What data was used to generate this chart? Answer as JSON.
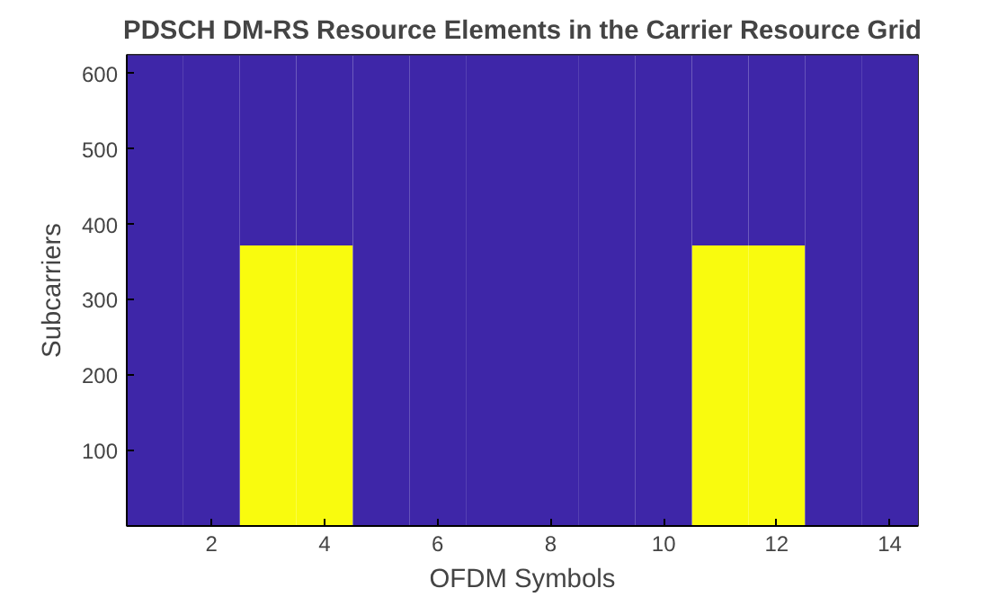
{
  "chart_data": {
    "type": "bar",
    "stacked": true,
    "title": "PDSCH DM-RS Resource Elements in the Carrier Resource Grid",
    "xlabel": "OFDM Symbols",
    "ylabel": "Subcarriers",
    "x": [
      1,
      2,
      3,
      4,
      5,
      6,
      7,
      8,
      9,
      10,
      11,
      12,
      13,
      14
    ],
    "series": [
      {
        "color": "#f9fb0e",
        "values": [
          null,
          null,
          372,
          372,
          null,
          null,
          null,
          null,
          null,
          null,
          372,
          372,
          null,
          null
        ]
      },
      {
        "color": "#3e26a8",
        "values": [
          624,
          624,
          252,
          252,
          624,
          624,
          624,
          624,
          624,
          624,
          252,
          252,
          624,
          624
        ]
      }
    ],
    "xlim": [
      0.5,
      14.5
    ],
    "xticks": [
      2,
      4,
      6,
      8,
      10,
      12,
      14
    ],
    "ylim": [
      0.5,
      624.5
    ],
    "yticks": [
      100,
      200,
      300,
      400,
      500,
      600
    ],
    "grid": false
  }
}
